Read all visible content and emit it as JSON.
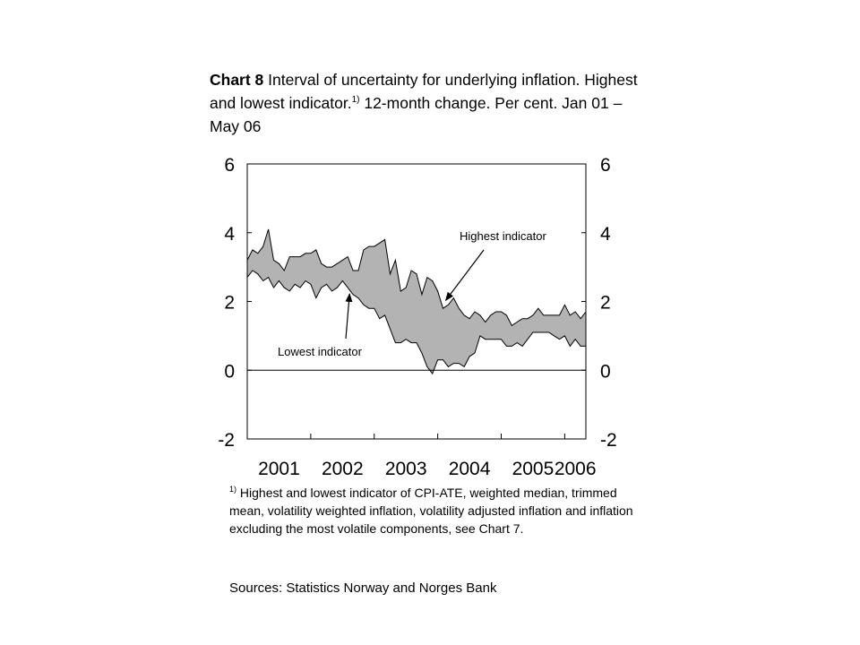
{
  "title": {
    "chart_label": "Chart 8",
    "text_1": " Interval of uncertainty for underlying inflation. Highest and lowest indicator.",
    "note_mark": "1)",
    "text_2": " 12-month change. Per cent. Jan 01 – May 06"
  },
  "footnote": {
    "mark": "1)",
    "text": " Highest and lowest indicator of CPI-ATE, weighted median, trimmed mean, volatility weighted inflation, volatility adjusted inflation and inflation excluding the most volatile components, see Chart 7."
  },
  "sources": "Sources: Statistics Norway and Norges Bank",
  "chart_data": {
    "type": "area",
    "x_range": [
      "2001-01",
      "2006-05"
    ],
    "ylim": [
      -2,
      6
    ],
    "y_ticks": [
      "-2",
      "0",
      "2",
      "4",
      "6"
    ],
    "x_ticks": [
      "2001",
      "2002",
      "2003",
      "2004",
      "2005",
      "2006"
    ],
    "annotations": [
      {
        "text": "Highest indicator",
        "series": "highest"
      },
      {
        "text": "Lowest indicator",
        "series": "lowest"
      }
    ],
    "colors": {
      "band": "#b3b3b3",
      "line": "#000000"
    },
    "months": [
      "2001-01",
      "2001-02",
      "2001-03",
      "2001-04",
      "2001-05",
      "2001-06",
      "2001-07",
      "2001-08",
      "2001-09",
      "2001-10",
      "2001-11",
      "2001-12",
      "2002-01",
      "2002-02",
      "2002-03",
      "2002-04",
      "2002-05",
      "2002-06",
      "2002-07",
      "2002-08",
      "2002-09",
      "2002-10",
      "2002-11",
      "2002-12",
      "2003-01",
      "2003-02",
      "2003-03",
      "2003-04",
      "2003-05",
      "2003-06",
      "2003-07",
      "2003-08",
      "2003-09",
      "2003-10",
      "2003-11",
      "2003-12",
      "2004-01",
      "2004-02",
      "2004-03",
      "2004-04",
      "2004-05",
      "2004-06",
      "2004-07",
      "2004-08",
      "2004-09",
      "2004-10",
      "2004-11",
      "2004-12",
      "2005-01",
      "2005-02",
      "2005-03",
      "2005-04",
      "2005-05",
      "2005-06",
      "2005-07",
      "2005-08",
      "2005-09",
      "2005-10",
      "2005-11",
      "2005-12",
      "2006-01",
      "2006-02",
      "2006-03",
      "2006-04",
      "2006-05"
    ],
    "series": [
      {
        "id": "highest",
        "values": [
          3.2,
          3.5,
          3.4,
          3.6,
          4.1,
          3.2,
          3.1,
          2.9,
          3.3,
          3.3,
          3.3,
          3.4,
          3.4,
          3.5,
          3.1,
          3.0,
          3.0,
          3.1,
          3.2,
          3.3,
          2.9,
          2.9,
          3.5,
          3.6,
          3.6,
          3.7,
          3.8,
          2.8,
          3.2,
          2.3,
          2.4,
          2.9,
          2.8,
          2.2,
          2.7,
          2.6,
          2.3,
          1.8,
          1.9,
          2.1,
          1.8,
          1.6,
          1.5,
          1.7,
          1.6,
          1.4,
          1.6,
          1.7,
          1.7,
          1.6,
          1.3,
          1.4,
          1.5,
          1.5,
          1.6,
          1.8,
          1.6,
          1.6,
          1.6,
          1.6,
          1.9,
          1.6,
          1.7,
          1.5,
          1.7
        ]
      },
      {
        "id": "lowest",
        "values": [
          2.7,
          2.9,
          2.8,
          2.6,
          2.7,
          2.4,
          2.6,
          2.4,
          2.3,
          2.5,
          2.4,
          2.6,
          2.5,
          2.1,
          2.4,
          2.5,
          2.3,
          2.4,
          2.6,
          2.4,
          2.2,
          2.1,
          1.9,
          1.8,
          1.8,
          1.5,
          1.6,
          1.2,
          0.8,
          0.8,
          0.9,
          0.8,
          0.8,
          0.5,
          0.1,
          -0.1,
          0.3,
          0.3,
          0.1,
          0.2,
          0.2,
          0.1,
          0.4,
          0.5,
          1.0,
          0.9,
          0.9,
          0.9,
          0.9,
          0.7,
          0.7,
          0.8,
          0.7,
          0.9,
          1.1,
          1.1,
          1.1,
          1.1,
          1.0,
          0.9,
          1.0,
          0.7,
          0.9,
          0.7,
          0.7
        ]
      }
    ]
  }
}
